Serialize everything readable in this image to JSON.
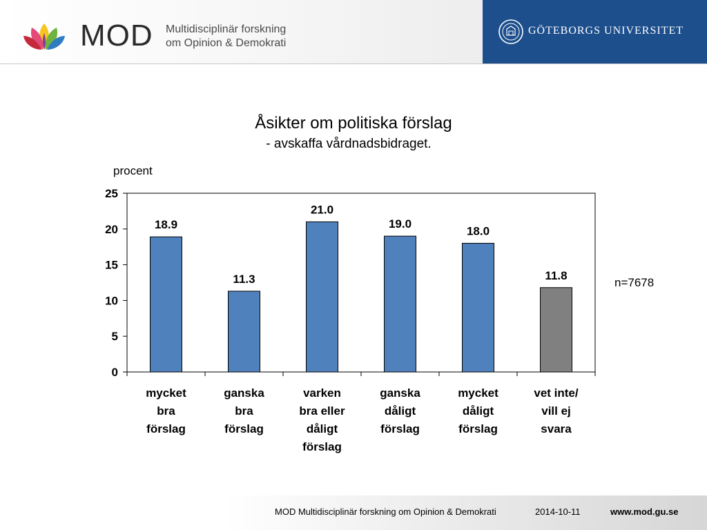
{
  "header": {
    "logo_word": "MOD",
    "logo_sub_line1": "Multidisciplinär forskning",
    "logo_sub_line2": "om Opinion & Demokrati",
    "university_name": "GÖTEBORGS UNIVERSITET",
    "university_panel_color": "#1d4f8d"
  },
  "chart_data": {
    "type": "bar",
    "title": "Åsikter om politiska förslag",
    "subtitle": "- avskaffa vårdnadsbidraget.",
    "ylabel": "procent",
    "xlabel": "",
    "ylim": [
      0,
      25
    ],
    "yticks": [
      0,
      5,
      10,
      15,
      20,
      25
    ],
    "grid": false,
    "legend": "none",
    "categories": [
      [
        "mycket",
        "bra",
        "förslag"
      ],
      [
        "ganska",
        "bra",
        "förslag"
      ],
      [
        "varken",
        "bra eller",
        "dåligt",
        "förslag"
      ],
      [
        "ganska",
        "dåligt",
        "förslag"
      ],
      [
        "mycket",
        "dåligt",
        "förslag"
      ],
      [
        "vet inte/",
        "vill ej",
        "svara"
      ]
    ],
    "values": [
      18.9,
      11.3,
      21.0,
      19.0,
      18.0,
      11.8
    ],
    "value_labels": [
      "18.9",
      "11.3",
      "21.0",
      "19.0",
      "18.0",
      "11.8"
    ],
    "bar_colors": [
      "#4f81bd",
      "#4f81bd",
      "#4f81bd",
      "#4f81bd",
      "#4f81bd",
      "#808080"
    ],
    "annotation": "n=7678"
  },
  "footer": {
    "org": "MOD Multidisciplinär forskning om Opinion & Demokrati",
    "date": "2014-10-11",
    "url": "www.mod.gu.se"
  }
}
